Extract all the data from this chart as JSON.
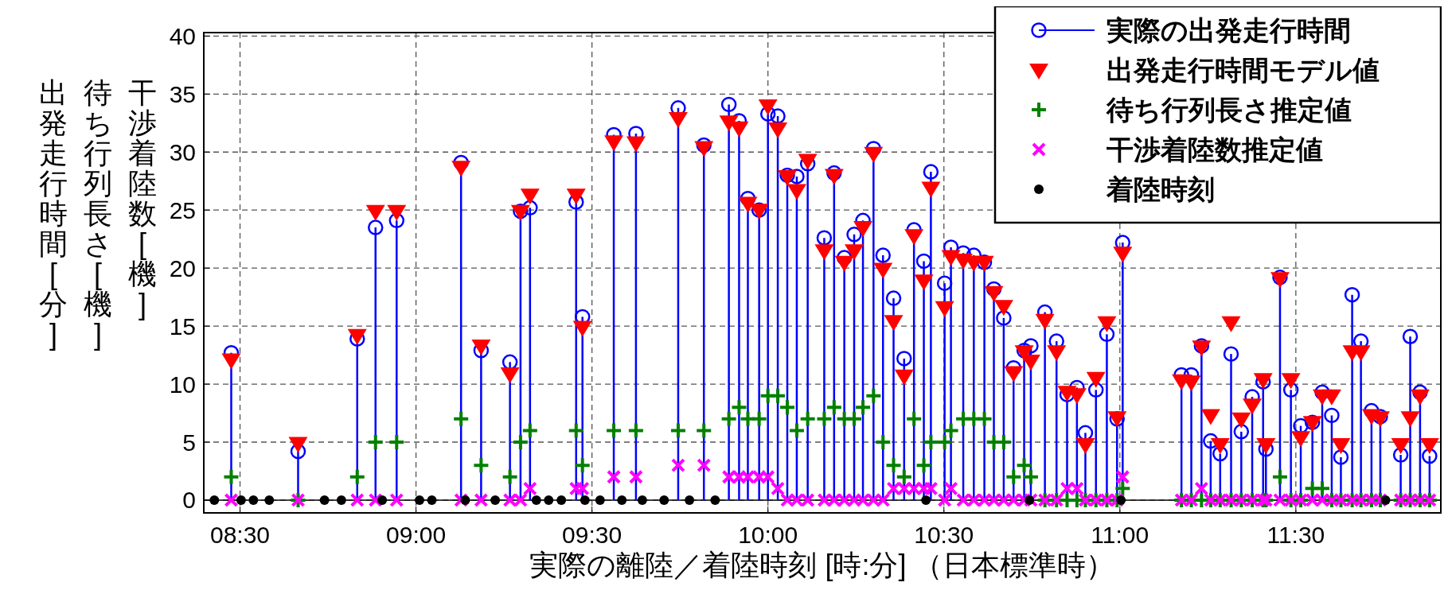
{
  "chart_data": {
    "type": "lollipop",
    "xlabel": "実際の離陸／着陸時刻 [時:分] （日本標準時）",
    "ylabel": "出発走行時間 [分]\n待ち行列長さ [機]\n干渉着陸数 [機]",
    "x": [
      8.475,
      8.665,
      8.833,
      8.885,
      8.945,
      9.128,
      9.185,
      9.267,
      9.297,
      9.324,
      9.455,
      9.473,
      9.562,
      9.625,
      9.745,
      9.818,
      9.889,
      9.918,
      9.943,
      9.975,
      10.0,
      10.028,
      10.055,
      10.082,
      10.113,
      10.16,
      10.188,
      10.217,
      10.245,
      10.27,
      10.3,
      10.327,
      10.357,
      10.387,
      10.415,
      10.443,
      10.463,
      10.502,
      10.52,
      10.555,
      10.585,
      10.615,
      10.642,
      10.67,
      10.698,
      10.728,
      10.747,
      10.787,
      10.82,
      10.85,
      10.878,
      10.902,
      10.932,
      10.963,
      10.992,
      11.008,
      11.175,
      11.203,
      11.232,
      11.258,
      11.285,
      11.316,
      11.345,
      11.376,
      11.407,
      11.415,
      11.455,
      11.486,
      11.514,
      11.547,
      11.575,
      11.602,
      11.628,
      11.66,
      11.685,
      11.715,
      11.74,
      11.798,
      11.825,
      11.853,
      11.88
    ],
    "series": [
      {
        "name": "実際の出発走行時間",
        "type": "lollipop",
        "marker": "circle",
        "color": "#0000ff",
        "values": [
          12.7,
          4.2,
          13.9,
          23.5,
          24.1,
          29.1,
          12.9,
          11.9,
          24.9,
          25.2,
          25.7,
          15.8,
          31.5,
          31.6,
          33.8,
          30.6,
          34.1,
          32.7,
          26.0,
          25.0,
          33.3,
          33.1,
          28.0,
          27.9,
          29.0,
          22.6,
          28.2,
          20.9,
          22.9,
          24.1,
          30.3,
          21.1,
          17.4,
          12.2,
          23.3,
          20.6,
          28.3,
          18.7,
          21.8,
          21.3,
          21.1,
          20.5,
          18.2,
          15.7,
          11.4,
          12.9,
          13.3,
          16.2,
          13.7,
          9.1,
          9.7,
          5.8,
          9.5,
          14.3,
          7.0,
          22.2,
          10.8,
          10.8,
          13.3,
          5.1,
          4.0,
          12.6,
          5.9,
          8.9,
          10.2,
          4.4,
          19.2,
          9.5,
          6.4,
          6.7,
          9.3,
          7.3,
          3.7,
          17.7,
          13.7,
          7.7,
          7.2,
          3.9,
          14.1,
          9.3,
          3.8
        ]
      },
      {
        "name": "出発走行時間モデル値",
        "type": "scatter",
        "marker": "triangle",
        "color": "#ff0000",
        "values": [
          12.1,
          4.9,
          14.2,
          24.9,
          24.9,
          28.7,
          13.3,
          10.9,
          24.9,
          26.3,
          26.3,
          14.9,
          30.9,
          30.8,
          32.9,
          30.4,
          32.6,
          32.1,
          25.6,
          25.0,
          34.0,
          32.0,
          27.9,
          26.7,
          29.3,
          21.5,
          28.0,
          20.5,
          21.5,
          23.5,
          29.9,
          19.9,
          15.4,
          10.7,
          22.8,
          18.9,
          26.9,
          16.6,
          21.0,
          20.7,
          20.5,
          20.5,
          17.9,
          16.7,
          11.0,
          12.8,
          12.0,
          15.5,
          12.8,
          9.3,
          9.1,
          4.8,
          10.5,
          15.3,
          7.1,
          21.3,
          10.3,
          10.2,
          13.2,
          7.3,
          4.8,
          15.3,
          7.0,
          8.2,
          10.4,
          4.8,
          19.1,
          10.4,
          5.4,
          6.7,
          9.0,
          9.0,
          4.8,
          12.8,
          12.8,
          7.3,
          7.1,
          4.8,
          7.1,
          9.0,
          4.8
        ]
      },
      {
        "name": "待ち行列長さ推定値",
        "type": "scatter",
        "marker": "cross",
        "color": "#008000",
        "values": [
          2,
          0,
          2,
          5,
          5,
          7,
          3,
          2,
          5,
          6,
          6,
          3,
          6,
          6,
          6,
          6,
          7,
          8,
          7,
          7,
          9,
          9,
          8,
          6,
          7,
          7,
          8,
          7,
          7,
          8,
          9,
          5,
          3,
          2,
          7,
          3,
          5,
          5,
          6,
          7,
          7,
          7,
          5,
          5,
          2,
          3,
          2,
          0,
          0,
          0,
          0,
          0,
          0,
          0,
          0,
          1,
          0,
          0,
          0,
          0,
          0,
          0,
          0,
          0,
          0,
          0,
          2,
          0,
          0,
          1,
          1,
          0,
          0,
          0,
          0,
          0,
          0,
          0,
          0,
          0,
          0
        ]
      },
      {
        "name": "干渉着陸数推定値",
        "type": "scatter",
        "marker": "x",
        "color": "#ff00ff",
        "values": [
          0,
          0,
          0,
          0,
          0,
          0,
          0,
          0,
          0,
          1,
          1,
          1,
          2,
          2,
          3,
          3,
          2,
          2,
          2,
          2,
          2,
          1,
          0,
          0,
          0,
          0,
          0,
          0,
          0,
          0,
          0,
          0,
          1,
          1,
          1,
          1,
          1,
          0,
          1,
          0,
          0,
          0,
          0,
          0,
          0,
          0,
          0,
          0,
          0,
          1,
          1,
          0,
          0,
          0,
          0,
          2,
          0,
          0,
          1,
          0,
          0,
          0,
          0,
          0,
          0,
          0,
          0,
          0,
          0,
          0,
          0,
          0,
          0,
          0,
          0,
          0,
          0,
          0,
          0,
          0,
          0
        ]
      },
      {
        "name": "着陸時刻",
        "type": "scatter",
        "marker": "circle",
        "color": "#000000",
        "x": [
          8.427,
          8.503,
          8.538,
          8.583,
          8.74,
          8.788,
          8.904,
          9.01,
          9.045,
          9.14,
          9.225,
          9.342,
          9.377,
          9.413,
          9.48,
          9.523,
          9.585,
          9.643,
          9.705,
          9.777,
          9.85,
          10.449,
          10.743,
          11.003,
          11.755
        ],
        "values": [
          0,
          0,
          0,
          0,
          0,
          0,
          0,
          0,
          0,
          0,
          0,
          0,
          0,
          0,
          0,
          0,
          0,
          0,
          0,
          0,
          0,
          0,
          0,
          0,
          0
        ]
      }
    ],
    "xlim": [
      8.397,
      11.912
    ],
    "xticks": [
      {
        "value": 8.5,
        "label": "08:30"
      },
      {
        "value": 9,
        "label": "09:00"
      },
      {
        "value": 9.5,
        "label": "09:30"
      },
      {
        "value": 10,
        "label": "10:00"
      },
      {
        "value": 10.5,
        "label": "10:30"
      },
      {
        "value": 11,
        "label": "11:00"
      },
      {
        "value": 11.5,
        "label": "11:30"
      }
    ],
    "ylim": [
      -1.1,
      40.3
    ],
    "yticks": [
      0,
      5,
      10,
      15,
      20,
      25,
      30,
      35,
      40
    ],
    "grid": true,
    "legend": "top right"
  }
}
